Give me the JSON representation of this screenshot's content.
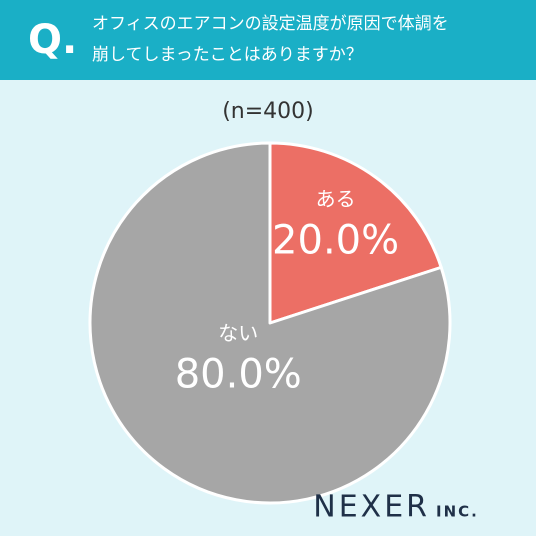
{
  "header": {
    "mark": "Q.",
    "question": [
      "オフィスのエアコンの設定温度が原因で体調を",
      "崩してしまったことはありますか？"
    ]
  },
  "chart_data": {
    "type": "pie",
    "subtitle": "(n=400)",
    "categories": [
      "ある",
      "ない"
    ],
    "series": [
      {
        "values": [
          20,
          80
        ],
        "value_labels": [
          "20.0%",
          "80.0%"
        ],
        "colors": [
          "#ec6f65",
          "#a6a6a6"
        ]
      }
    ]
  },
  "logo": {
    "name": "NEXER",
    "suffix": "INC."
  }
}
